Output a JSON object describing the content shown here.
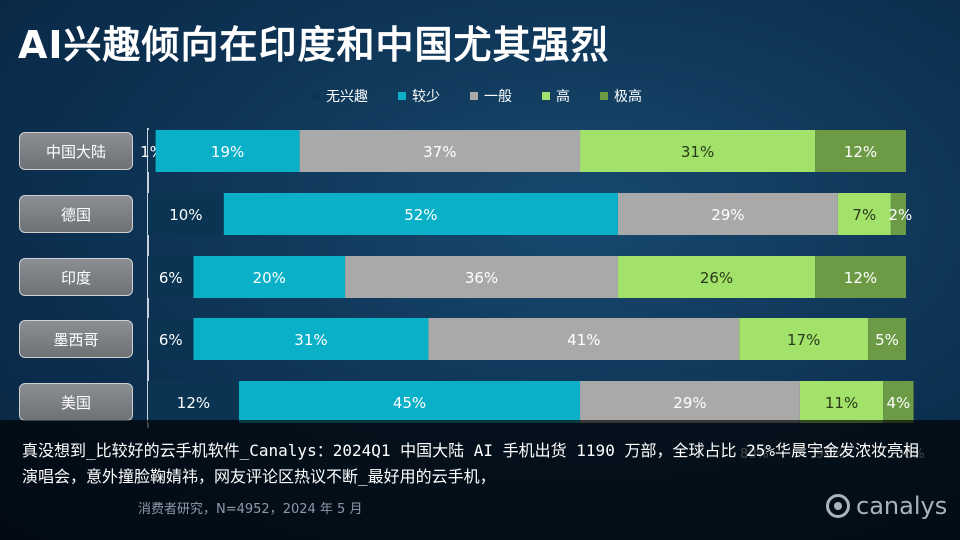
{
  "title": "AI兴趣倾向在印度和中国尤其强烈",
  "chart_data": {
    "type": "bar",
    "orientation": "horizontal",
    "stacked": true,
    "title": "AI兴趣倾向在印度和中国尤其强烈",
    "categories": [
      "中国大陆",
      "德国",
      "印度",
      "墨西哥",
      "美国"
    ],
    "series": [
      {
        "name": "无兴趣",
        "color": "#0b3352",
        "values": [
          1,
          10,
          6,
          6,
          12
        ]
      },
      {
        "name": "较少",
        "color": "#09b0c8",
        "values": [
          19,
          52,
          20,
          31,
          45
        ]
      },
      {
        "name": "一般",
        "color": "#a9a9a9",
        "values": [
          37,
          29,
          36,
          41,
          29
        ]
      },
      {
        "name": "高",
        "color": "#a2e26a",
        "values": [
          31,
          7,
          26,
          17,
          11
        ]
      },
      {
        "name": "极高",
        "color": "#6c9a45",
        "values": [
          12,
          2,
          12,
          5,
          4
        ]
      }
    ],
    "xlim": [
      0,
      100
    ],
    "x_ticks_visible": [
      "80%",
      "90%",
      "100%"
    ],
    "legend": "top",
    "grid": false
  },
  "overlay": {
    "caption": "真没想到_比较好的云手机软件_Canalys：2024Q1 中国大陆 AI 手机出货 1190 万部，全球占比 25%华晨宇金发浓妆亮相演唱会，意外撞脸鞠婧祎，网友评论区热议不断_最好用的云手机，"
  },
  "source": "消费者研究，N=4952，2024 年 5 月",
  "logo_text": "canalys"
}
